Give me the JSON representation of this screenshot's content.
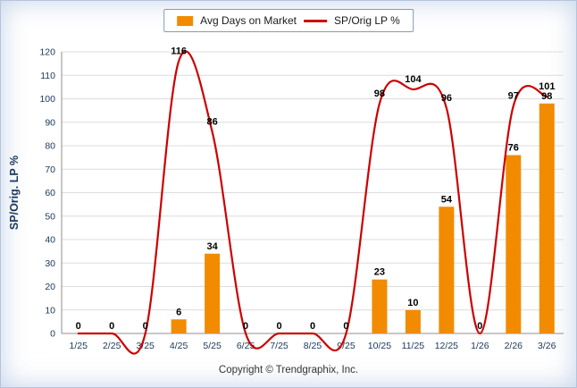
{
  "legend": {
    "bar_label": "Avg Days on Market",
    "line_label": "SP/Orig LP %"
  },
  "footer": {
    "copyright": "Copyright © Trendgraphix, Inc."
  },
  "colors": {
    "bar": "#F28B00",
    "line": "#CC0000",
    "axis_text": "#17375D",
    "data_label": "#000000",
    "gridline": "#DCDCDC",
    "axis_line": "#8F8F8F"
  },
  "chart_data": {
    "type": "combo",
    "categories": [
      "1/25",
      "2/25",
      "3/25",
      "4/25",
      "5/25",
      "6/25",
      "7/25",
      "8/25",
      "9/25",
      "10/25",
      "11/25",
      "12/25",
      "1/26",
      "2/26",
      "3/26"
    ],
    "series": [
      {
        "name": "Avg Days on Market",
        "type": "bar",
        "color": "#F28B00",
        "values": [
          0,
          0,
          0,
          6,
          34,
          0,
          0,
          0,
          0,
          23,
          10,
          54,
          0,
          76,
          98
        ]
      },
      {
        "name": "SP/Orig LP %",
        "type": "line",
        "color": "#CC0000",
        "values": [
          0,
          0,
          0,
          116,
          86,
          0,
          0,
          0,
          0,
          98,
          104,
          96,
          0,
          97,
          101
        ]
      }
    ],
    "title": "",
    "xlabel": "",
    "ylabel": "SP/Orig. LP %",
    "ylim": [
      0,
      120
    ],
    "ytick_step": 10,
    "grid": "horizontal",
    "legend_position": "top-center",
    "line_style": "smooth"
  }
}
